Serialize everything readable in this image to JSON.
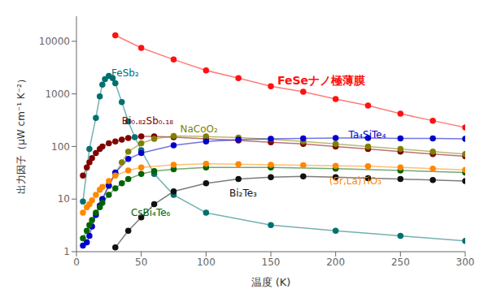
{
  "chart_data": {
    "type": "line",
    "xlabel": "温度 (K)",
    "ylabel": "出力因子（μW cm⁻¹ K⁻²）",
    "log": "y",
    "xlim": [
      0,
      300
    ],
    "ylim": [
      1,
      30000
    ],
    "xticks": [
      0,
      50,
      100,
      150,
      200,
      250,
      300
    ],
    "yticks": [
      1,
      10,
      100,
      1000,
      10000
    ],
    "grid": false,
    "marker": "circle",
    "series": [
      {
        "color": "#ff1111",
        "x": [
          30,
          50,
          75,
          100,
          125,
          150,
          175,
          200,
          225,
          250,
          275,
          300
        ],
        "values": [
          13000,
          7500,
          4500,
          2800,
          2000,
          1400,
          1100,
          800,
          600,
          420,
          310,
          230
        ]
      },
      {
        "color": "#007070",
        "x": [
          5,
          10,
          15,
          18,
          20,
          22,
          25,
          28,
          30,
          35,
          40,
          45,
          50,
          60,
          75,
          100,
          150,
          200,
          250,
          300
        ],
        "values": [
          9,
          90,
          350,
          900,
          1500,
          1900,
          2200,
          2000,
          1600,
          700,
          300,
          150,
          85,
          30,
          12,
          5.5,
          3.2,
          2.5,
          2.0,
          1.6
        ]
      },
      {
        "color": "#800000",
        "x": [
          5,
          8,
          10,
          12,
          15,
          18,
          20,
          25,
          30,
          35,
          40,
          50,
          60,
          75,
          100,
          125,
          150,
          175,
          200,
          225,
          250,
          275,
          300
        ],
        "values": [
          28,
          40,
          50,
          60,
          75,
          90,
          100,
          115,
          125,
          135,
          145,
          155,
          155,
          150,
          140,
          130,
          120,
          112,
          100,
          90,
          80,
          72,
          65
        ]
      },
      {
        "color": "#808000",
        "x": [
          20,
          25,
          30,
          35,
          40,
          50,
          60,
          75,
          100,
          125,
          150,
          175,
          200,
          225,
          250,
          275,
          300
        ],
        "values": [
          10,
          18,
          30,
          50,
          80,
          115,
          140,
          158,
          155,
          148,
          138,
          125,
          112,
          100,
          90,
          80,
          72
        ]
      },
      {
        "color": "#0000cc",
        "x": [
          5,
          8,
          10,
          12,
          15,
          18,
          20,
          25,
          30,
          40,
          50,
          75,
          100,
          125,
          150,
          175,
          200,
          225,
          250,
          275,
          300
        ],
        "values": [
          1.3,
          1.5,
          2.0,
          3.0,
          5.0,
          7.5,
          10,
          18,
          32,
          58,
          75,
          105,
          125,
          135,
          140,
          143,
          145,
          145,
          143,
          142,
          140
        ]
      },
      {
        "color": "#006400",
        "x": [
          5,
          8,
          10,
          12,
          15,
          18,
          20,
          25,
          30,
          35,
          40,
          50,
          60,
          75,
          100,
          150,
          200,
          250,
          300
        ],
        "values": [
          1.8,
          2.5,
          3.2,
          4.0,
          5.5,
          7.0,
          8.5,
          12,
          16,
          20,
          24,
          30,
          34,
          37,
          40,
          40,
          38,
          35,
          32
        ]
      },
      {
        "color": "#111111",
        "x": [
          30,
          40,
          50,
          60,
          75,
          100,
          125,
          150,
          175,
          200,
          225,
          250,
          275,
          300
        ],
        "values": [
          1.2,
          2.5,
          4.5,
          8,
          14,
          20,
          24,
          26,
          27,
          26,
          25,
          24,
          23,
          22
        ]
      },
      {
        "color": "#ff8800",
        "x": [
          5,
          8,
          10,
          12,
          15,
          18,
          20,
          25,
          30,
          40,
          50,
          75,
          100,
          125,
          150,
          175,
          200,
          225,
          250,
          275,
          300
        ],
        "values": [
          5.5,
          7,
          8,
          9.5,
          12,
          15,
          17,
          22,
          28,
          35,
          40,
          45,
          47,
          46,
          45,
          44,
          43,
          42,
          40,
          38,
          36
        ]
      }
    ],
    "annotations": [
      {
        "text": "FeSeナノ極薄膜",
        "x": 155,
        "y": 1800,
        "color": "#ff1111"
      },
      {
        "text": "FeSb₂",
        "x": 27,
        "y": 2500,
        "color": "#007070"
      },
      {
        "text": "Bi₀.₈₂Sb₀.₁₈",
        "x": 35,
        "y": 310,
        "color": "#800000"
      },
      {
        "text": "NaCoO₂",
        "x": 80,
        "y": 215,
        "color": "#808000"
      },
      {
        "text": "Ta₄SiTe₄",
        "x": 210,
        "y": 170,
        "color": "#0000cc"
      },
      {
        "text": "CsBi₄Te₆",
        "x": 42,
        "y": 5.5,
        "color": "#006400"
      },
      {
        "text": "Bi₂Te₃",
        "x": 118,
        "y": 13,
        "color": "#111111"
      },
      {
        "text": "(Sr,La)TiO₃",
        "x": 195,
        "y": 22,
        "color": "#ff8800"
      }
    ]
  }
}
